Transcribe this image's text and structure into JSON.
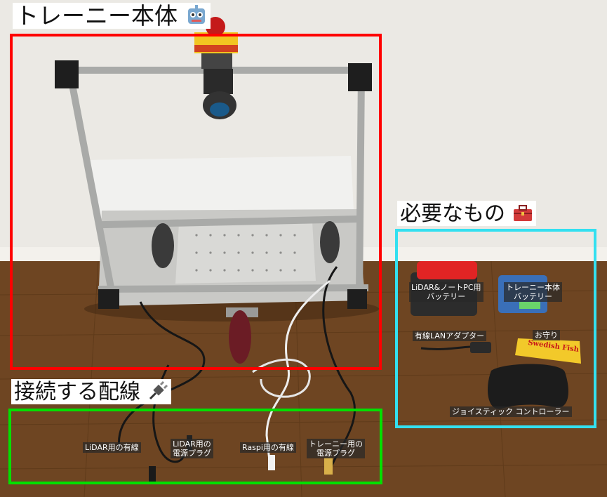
{
  "sections": {
    "robot_body": {
      "label": "トレーニー本体",
      "icon": "robot-face-icon",
      "color": "#ff0000"
    },
    "requirements": {
      "label": "必要なもの",
      "icon": "toolbox-icon",
      "color": "#33e0f0"
    },
    "wiring": {
      "label": "接続する配線",
      "icon": "electric-plug-icon",
      "color": "#00e000"
    }
  },
  "items": {
    "lidar_pc_battery": "LiDAR&ノートPC用\nバッテリー",
    "robot_battery": "トレーニー本体\nバッテリー",
    "lan_adapter": "有線LANアダプター",
    "amulet": "お守り",
    "joystick": "ジョイスティック コントローラー"
  },
  "cables": {
    "lidar_wired": "LiDAR用の有線",
    "lidar_power": "LiDAR用の\n電源プラグ",
    "raspi_wired": "Raspi用の有線",
    "robot_power": "トレーニー用の\n電源プラグ"
  },
  "amulet_logo_text": "Swedish Fish"
}
